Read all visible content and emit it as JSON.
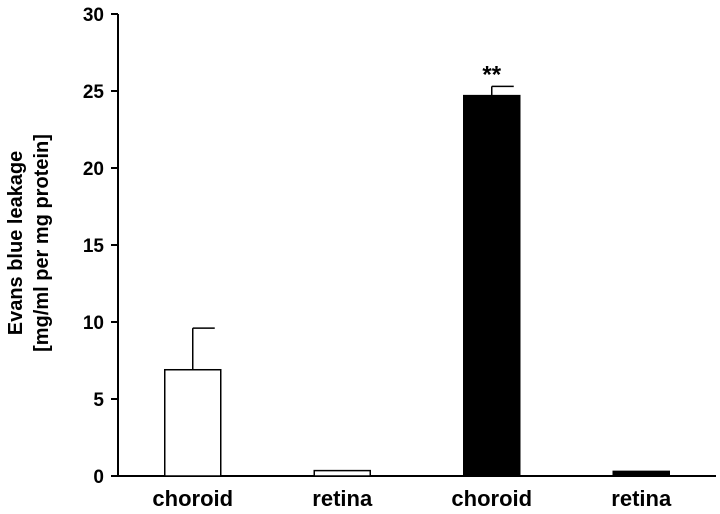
{
  "chart_data": {
    "type": "bar",
    "title": "",
    "xlabel": "",
    "ylabel_lines": [
      "Evans blue leakage",
      "[mg/ml  per mg protein]"
    ],
    "ylim": [
      0,
      30
    ],
    "yticks": [
      0,
      5,
      10,
      15,
      20,
      25,
      30
    ],
    "categories": [
      "choroid",
      "retina",
      "choroid",
      "retina"
    ],
    "values": [
      6.9,
      0.35,
      24.7,
      0.3
    ],
    "errors": [
      2.7,
      0,
      0.6,
      0
    ],
    "bar_fill": [
      "#ffffff",
      "#ffffff",
      "#000000",
      "#000000"
    ],
    "annotations": [
      {
        "category_index": 2,
        "text": "**"
      }
    ],
    "grid": false,
    "legend": "none"
  }
}
